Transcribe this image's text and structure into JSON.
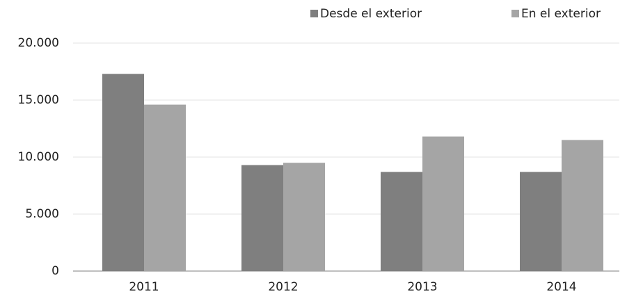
{
  "chart_data": {
    "type": "bar",
    "categories": [
      "2011",
      "2012",
      "2013",
      "2014"
    ],
    "series": [
      {
        "name": "Desde el exterior",
        "color": "#7f7f7f",
        "values": [
          17300,
          9300,
          8700,
          8700
        ]
      },
      {
        "name": "En el exterior",
        "color": "#a5a5a5",
        "values": [
          14600,
          9500,
          11800,
          11500
        ]
      }
    ],
    "ylim": [
      0,
      20000
    ],
    "yticks": [
      0,
      {
        "value": 5000,
        "label": "5.000"
      },
      {
        "value": 10000,
        "label": "10.000"
      },
      {
        "value": 15000,
        "label": "15.000"
      },
      {
        "value": 20000,
        "label": "20.000"
      }
    ],
    "grid": true,
    "legend": "top-right"
  }
}
